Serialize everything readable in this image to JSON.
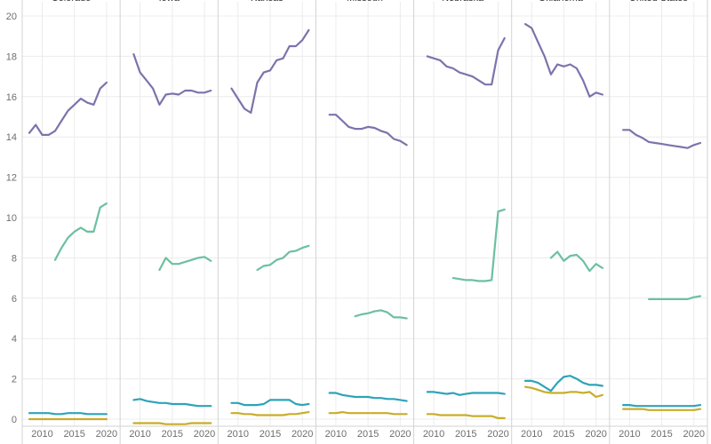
{
  "chart_data": {
    "type": "line",
    "layout": "small-multiples",
    "title": "",
    "xlabel": "",
    "ylabel": "",
    "x": [
      2008,
      2009,
      2010,
      2011,
      2012,
      2013,
      2014,
      2015,
      2016,
      2017,
      2018,
      2019,
      2020,
      2021
    ],
    "x_ticks": [
      2010,
      2015,
      2020
    ],
    "ylim": [
      0,
      20
    ],
    "y_ticks": [
      0,
      2,
      4,
      6,
      8,
      10,
      12,
      14,
      16,
      18,
      20
    ],
    "grid": true,
    "series_colors": [
      "#7b74ac",
      "#6cc0a0",
      "#2ea3b8",
      "#c8ad2a"
    ],
    "panels": [
      {
        "title": "Colorado",
        "series": [
          {
            "values": [
              14.2,
              14.6,
              14.1,
              14.1,
              14.3,
              14.8,
              15.3,
              15.6,
              15.9,
              15.7,
              15.6,
              16.4,
              16.7,
              null
            ]
          },
          {
            "values": [
              null,
              null,
              null,
              null,
              7.9,
              8.5,
              9.0,
              9.3,
              9.5,
              9.3,
              9.3,
              10.5,
              10.7,
              null
            ]
          },
          {
            "values": [
              0.3,
              0.3,
              0.3,
              0.3,
              0.25,
              0.25,
              0.3,
              0.3,
              0.3,
              0.25,
              0.25,
              0.25,
              0.25,
              null
            ]
          },
          {
            "values": [
              0.0,
              0.0,
              0.0,
              0.0,
              0.0,
              0.0,
              0.0,
              0.0,
              0.0,
              0.0,
              0.0,
              0.0,
              0.0,
              null
            ]
          }
        ]
      },
      {
        "title": "Iowa",
        "series": [
          {
            "values": [
              null,
              18.1,
              17.2,
              16.8,
              16.4,
              15.6,
              16.1,
              16.15,
              16.1,
              16.3,
              16.3,
              16.2,
              16.2,
              16.3
            ]
          },
          {
            "values": [
              null,
              null,
              null,
              null,
              null,
              7.4,
              8.0,
              7.7,
              7.7,
              7.8,
              7.9,
              8.0,
              8.05,
              7.85
            ]
          },
          {
            "values": [
              null,
              0.95,
              1.0,
              0.9,
              0.85,
              0.8,
              0.8,
              0.75,
              0.75,
              0.75,
              0.7,
              0.65,
              0.65,
              0.65
            ]
          },
          {
            "values": [
              null,
              -0.2,
              -0.2,
              -0.2,
              -0.2,
              -0.2,
              -0.25,
              -0.25,
              -0.25,
              -0.25,
              -0.2,
              -0.2,
              -0.2,
              -0.2
            ]
          }
        ]
      },
      {
        "title": "Kansas",
        "series": [
          {
            "values": [
              null,
              16.4,
              15.9,
              15.4,
              15.2,
              16.7,
              17.2,
              17.3,
              17.8,
              17.9,
              18.5,
              18.5,
              18.8,
              19.3
            ]
          },
          {
            "values": [
              null,
              null,
              null,
              null,
              null,
              7.4,
              7.6,
              7.65,
              7.9,
              8.0,
              8.3,
              8.35,
              8.5,
              8.6
            ]
          },
          {
            "values": [
              null,
              0.8,
              0.8,
              0.7,
              0.7,
              0.7,
              0.75,
              0.95,
              0.95,
              0.95,
              0.95,
              0.75,
              0.7,
              0.75
            ]
          },
          {
            "values": [
              null,
              0.3,
              0.3,
              0.25,
              0.25,
              0.2,
              0.2,
              0.2,
              0.2,
              0.2,
              0.25,
              0.25,
              0.3,
              0.35
            ]
          }
        ]
      },
      {
        "title": "Missouri",
        "series": [
          {
            "values": [
              null,
              15.1,
              15.1,
              14.8,
              14.5,
              14.4,
              14.4,
              14.5,
              14.45,
              14.3,
              14.2,
              13.9,
              13.8,
              13.6
            ]
          },
          {
            "values": [
              null,
              null,
              null,
              null,
              null,
              5.1,
              5.2,
              5.25,
              5.35,
              5.4,
              5.3,
              5.05,
              5.05,
              5.0
            ]
          },
          {
            "values": [
              null,
              1.3,
              1.3,
              1.2,
              1.15,
              1.1,
              1.1,
              1.1,
              1.05,
              1.05,
              1.0,
              1.0,
              0.95,
              0.9
            ]
          },
          {
            "values": [
              null,
              0.3,
              0.3,
              0.35,
              0.3,
              0.3,
              0.3,
              0.3,
              0.3,
              0.3,
              0.3,
              0.25,
              0.25,
              0.25
            ]
          }
        ]
      },
      {
        "title": "Nebraska",
        "series": [
          {
            "values": [
              null,
              18.0,
              17.9,
              17.8,
              17.5,
              17.4,
              17.2,
              17.1,
              17.0,
              16.8,
              16.6,
              16.6,
              18.3,
              18.9
            ]
          },
          {
            "values": [
              null,
              null,
              null,
              null,
              null,
              7.0,
              6.95,
              6.9,
              6.9,
              6.85,
              6.85,
              6.9,
              10.3,
              10.4
            ]
          },
          {
            "values": [
              null,
              1.35,
              1.35,
              1.3,
              1.25,
              1.3,
              1.2,
              1.25,
              1.3,
              1.3,
              1.3,
              1.3,
              1.3,
              1.25
            ]
          },
          {
            "values": [
              null,
              0.25,
              0.25,
              0.2,
              0.2,
              0.2,
              0.2,
              0.2,
              0.15,
              0.15,
              0.15,
              0.15,
              0.05,
              0.05
            ]
          }
        ]
      },
      {
        "title": "Oklahoma",
        "series": [
          {
            "values": [
              null,
              19.6,
              19.4,
              18.7,
              18.0,
              17.1,
              17.6,
              17.5,
              17.6,
              17.4,
              16.8,
              16.0,
              16.2,
              16.1
            ]
          },
          {
            "values": [
              null,
              null,
              null,
              null,
              null,
              8.0,
              8.3,
              7.85,
              8.1,
              8.15,
              7.85,
              7.35,
              7.7,
              7.5
            ]
          },
          {
            "values": [
              null,
              1.9,
              1.9,
              1.8,
              1.6,
              1.4,
              1.8,
              2.1,
              2.15,
              2.0,
              1.8,
              1.7,
              1.7,
              1.65
            ]
          },
          {
            "values": [
              null,
              1.6,
              1.55,
              1.45,
              1.35,
              1.3,
              1.3,
              1.3,
              1.35,
              1.35,
              1.3,
              1.35,
              1.1,
              1.2
            ]
          }
        ]
      },
      {
        "title": "United States",
        "series": [
          {
            "values": [
              null,
              14.35,
              14.35,
              14.1,
              13.95,
              13.75,
              13.7,
              13.65,
              13.6,
              13.55,
              13.5,
              13.45,
              13.6,
              13.7
            ]
          },
          {
            "values": [
              null,
              null,
              null,
              null,
              null,
              5.95,
              5.95,
              5.95,
              5.95,
              5.95,
              5.95,
              5.95,
              6.05,
              6.1
            ]
          },
          {
            "values": [
              null,
              0.7,
              0.7,
              0.65,
              0.65,
              0.65,
              0.65,
              0.65,
              0.65,
              0.65,
              0.65,
              0.65,
              0.65,
              0.7
            ]
          },
          {
            "values": [
              null,
              0.5,
              0.5,
              0.5,
              0.5,
              0.45,
              0.45,
              0.45,
              0.45,
              0.45,
              0.45,
              0.45,
              0.45,
              0.5
            ]
          }
        ]
      }
    ]
  }
}
